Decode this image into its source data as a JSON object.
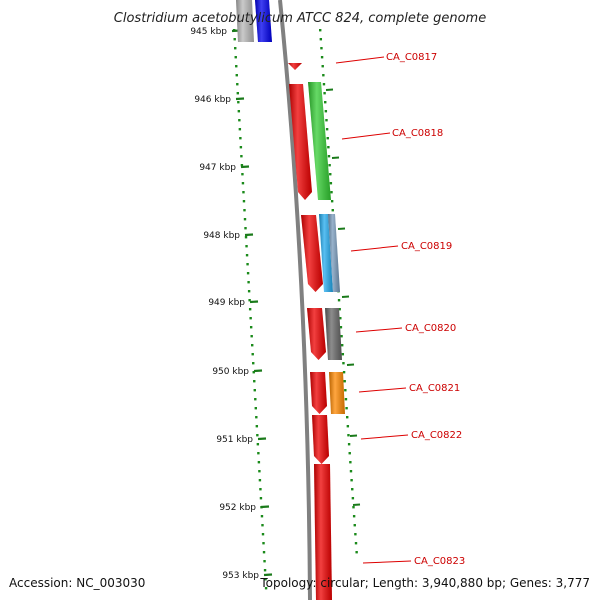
{
  "title": "Clostridium acetobutylicum ATCC 824, complete genome",
  "accession": "Accession: NC_003030",
  "topology": "Topology: circular; Length: 3,940,880 bp; Genes: 3,777",
  "colors": {
    "tick": "#1a7a1a",
    "dots": "#1a8a1a",
    "backbone": "#808080",
    "label": "#cc0000",
    "leader": "#dd0000"
  },
  "ticks": [
    {
      "label": "945 kbp"
    },
    {
      "label": "946 kbp"
    },
    {
      "label": "947 kbp"
    },
    {
      "label": "948 kbp"
    },
    {
      "label": "949 kbp"
    },
    {
      "label": "950 kbp"
    },
    {
      "label": "951 kbp"
    },
    {
      "label": "952 kbp"
    },
    {
      "label": "953 kbp"
    }
  ],
  "gene_labels": [
    {
      "label": "CA_C0817"
    },
    {
      "label": "CA_C0818"
    },
    {
      "label": "CA_C0819"
    },
    {
      "label": "CA_C0820"
    },
    {
      "label": "CA_C0821"
    },
    {
      "label": "CA_C0822"
    },
    {
      "label": "CA_C0823"
    }
  ],
  "features": [
    {
      "name": "feature-gray-top",
      "color": "#b8b8b8"
    },
    {
      "name": "feature-blue-top",
      "color": "#0000ee"
    },
    {
      "name": "gene-ca-c0817",
      "color": "#ee0000"
    },
    {
      "name": "gene-ca-c0818",
      "color": "#ee0000"
    },
    {
      "name": "cog-ca-c0818",
      "color": "#33cc33"
    },
    {
      "name": "gene-ca-c0819",
      "color": "#ee0000"
    },
    {
      "name": "cog-ca-c0819-a",
      "color": "#22aaee"
    },
    {
      "name": "cog-ca-c0819-b",
      "color": "#7799bb"
    },
    {
      "name": "gene-ca-c0820",
      "color": "#ee0000"
    },
    {
      "name": "cog-ca-c0820",
      "color": "#666666"
    },
    {
      "name": "gene-ca-c0821",
      "color": "#ee0000"
    },
    {
      "name": "cog-ca-c0821",
      "color": "#ff8800"
    },
    {
      "name": "gene-ca-c0822",
      "color": "#ee0000"
    },
    {
      "name": "gene-ca-c0823",
      "color": "#ee0000"
    }
  ]
}
